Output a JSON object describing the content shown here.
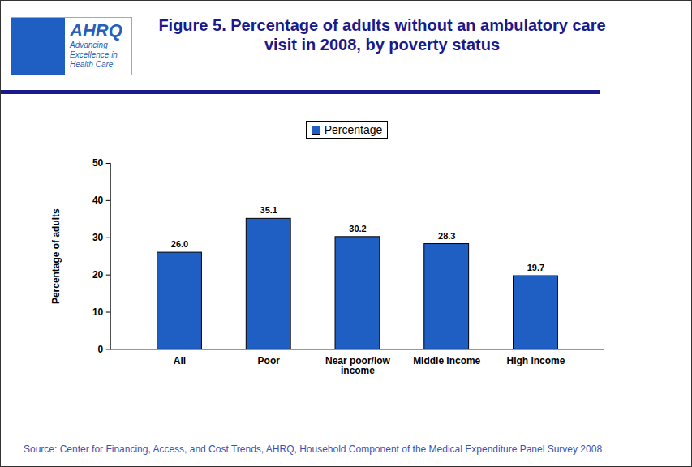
{
  "chart_data": {
    "type": "bar",
    "title": "Figure 5. Percentage of adults without an ambulatory care visit in 2008, by poverty status",
    "categories": [
      "All",
      "Poor",
      "Near poor/low income",
      "Middle income",
      "High income"
    ],
    "series": [
      {
        "name": "Percentage",
        "color": "#1f5fc4",
        "values": [
          26.0,
          35.1,
          30.2,
          28.3,
          19.7
        ],
        "value_labels": [
          "26.0",
          "35.1",
          "30.2",
          "28.3",
          "19.7"
        ]
      }
    ],
    "y_label": "Percentage of adults",
    "ylim": [
      0,
      50
    ],
    "yticks": [
      0,
      10,
      20,
      30,
      40,
      50
    ],
    "grid": false,
    "legend": "top",
    "data_labels": true,
    "source": "Source: Center for Financing, Access, and Cost Trends, AHRQ, Household Component of the Medical Expenditure Panel Survey 2008",
    "logo": {
      "text": "AHRQ",
      "tagline": "Advancing Excellence in Health Care"
    }
  }
}
